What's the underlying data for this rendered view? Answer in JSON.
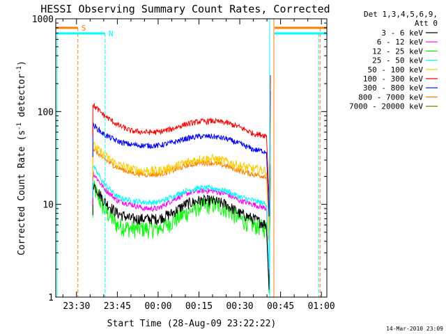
{
  "chart_data": {
    "type": "line",
    "title": "HESSI Observing Summary Count Rates, Corrected",
    "xlabel": "Start Time (28-Aug-09 23:22:22)",
    "ylabel_main": "Corrected Count Rate (s",
    "ylabel_exp1": "-1",
    "ylabel_mid": " detector",
    "ylabel_exp2": "-1",
    "ylabel_end": ")",
    "yscale": "log",
    "ylim": [
      1,
      1000
    ],
    "xlim": [
      "23:22:22",
      "01:02:00"
    ],
    "x_ticks": [
      "23:30",
      "23:45",
      "00:00",
      "00:15",
      "00:30",
      "00:45",
      "01:00"
    ],
    "y_ticks": [
      "1",
      "10",
      "100",
      "1000"
    ],
    "legend_title": "Det 1,3,4,5,6,9,",
    "legend_subtitle": "Att 0",
    "legend_position": "right",
    "footer_date": "14-Mar-2010 23:09",
    "flags": [
      {
        "label": "S",
        "color": "#ff7f00"
      },
      {
        "label": "N",
        "color": "#00ffff"
      }
    ],
    "series": [
      {
        "name": "3 - 6 keV",
        "color": "#000000",
        "x": [
          "23:36",
          "23:40",
          "23:45",
          "23:50",
          "23:55",
          "00:00",
          "00:05",
          "00:10",
          "00:15",
          "00:20",
          "00:25",
          "00:30",
          "00:35",
          "00:40"
        ],
        "y": [
          17,
          11,
          8,
          7,
          7,
          7,
          8,
          10,
          11,
          11,
          10,
          8,
          7,
          6
        ]
      },
      {
        "name": "6 - 12 keV",
        "color": "#ff00ff",
        "x": [
          "23:36",
          "23:40",
          "23:45",
          "23:50",
          "23:55",
          "00:00",
          "00:05",
          "00:10",
          "00:15",
          "00:20",
          "00:25",
          "00:30",
          "00:35",
          "00:40"
        ],
        "y": [
          22,
          15,
          11,
          10,
          9,
          9,
          11,
          13,
          14,
          14,
          13,
          11,
          10,
          9
        ]
      },
      {
        "name": "12 - 25 keV",
        "color": "#00ff00",
        "x": [
          "23:36",
          "23:40",
          "23:45",
          "23:50",
          "23:55",
          "00:00",
          "00:05",
          "00:10",
          "00:15",
          "00:20",
          "00:25",
          "00:30",
          "00:35",
          "00:40"
        ],
        "y": [
          16,
          9,
          6,
          5.5,
          5.5,
          5.5,
          6.5,
          8,
          9.5,
          10,
          9,
          7,
          6,
          5.5
        ]
      },
      {
        "name": "25 - 50 keV",
        "color": "#00ffff",
        "x": [
          "23:36",
          "23:40",
          "23:45",
          "23:50",
          "23:55",
          "00:00",
          "00:05",
          "00:10",
          "00:15",
          "00:20",
          "00:25",
          "00:30",
          "00:35",
          "00:40"
        ],
        "y": [
          26,
          17,
          12,
          11,
          10.5,
          10.5,
          12,
          14,
          15,
          15,
          14,
          12,
          11,
          10
        ]
      },
      {
        "name": "50 - 100 keV",
        "color": "#ffcc00",
        "x": [
          "23:36",
          "23:40",
          "23:45",
          "23:50",
          "23:55",
          "00:00",
          "00:05",
          "00:10",
          "00:15",
          "00:20",
          "00:25",
          "00:30",
          "00:35",
          "00:40"
        ],
        "y": [
          44,
          34,
          27,
          24,
          23,
          23,
          25,
          28,
          31,
          31,
          29,
          26,
          24,
          23
        ]
      },
      {
        "name": "100 - 300 keV",
        "color": "#ff0000",
        "x": [
          "23:36",
          "23:40",
          "23:45",
          "23:50",
          "23:55",
          "00:00",
          "00:05",
          "00:10",
          "00:15",
          "00:20",
          "00:25",
          "00:30",
          "00:35",
          "00:40"
        ],
        "y": [
          118,
          92,
          72,
          62,
          60,
          60,
          65,
          73,
          78,
          79,
          76,
          68,
          58,
          55
        ]
      },
      {
        "name": "300 - 800 keV",
        "color": "#0000ff",
        "x": [
          "23:36",
          "23:40",
          "23:45",
          "23:50",
          "23:55",
          "00:00",
          "00:05",
          "00:10",
          "00:15",
          "00:20",
          "00:25",
          "00:30",
          "00:35",
          "00:40"
        ],
        "y": [
          72,
          57,
          48,
          44,
          43,
          43,
          46,
          51,
          54,
          54,
          51,
          45,
          39,
          37
        ]
      },
      {
        "name": "800 - 7000 keV",
        "color": "#ff7f00",
        "x": [
          "23:36",
          "23:40",
          "23:45",
          "23:50",
          "23:55",
          "00:00",
          "00:05",
          "00:10",
          "00:15",
          "00:20",
          "00:25",
          "00:30",
          "00:35",
          "00:40"
        ],
        "y": [
          40,
          31,
          25,
          22,
          21,
          21,
          23,
          26,
          28,
          28,
          26,
          23,
          21,
          20
        ]
      },
      {
        "name": "7000 - 20000 keV",
        "color": "#808000",
        "x": [],
        "y": []
      }
    ]
  }
}
